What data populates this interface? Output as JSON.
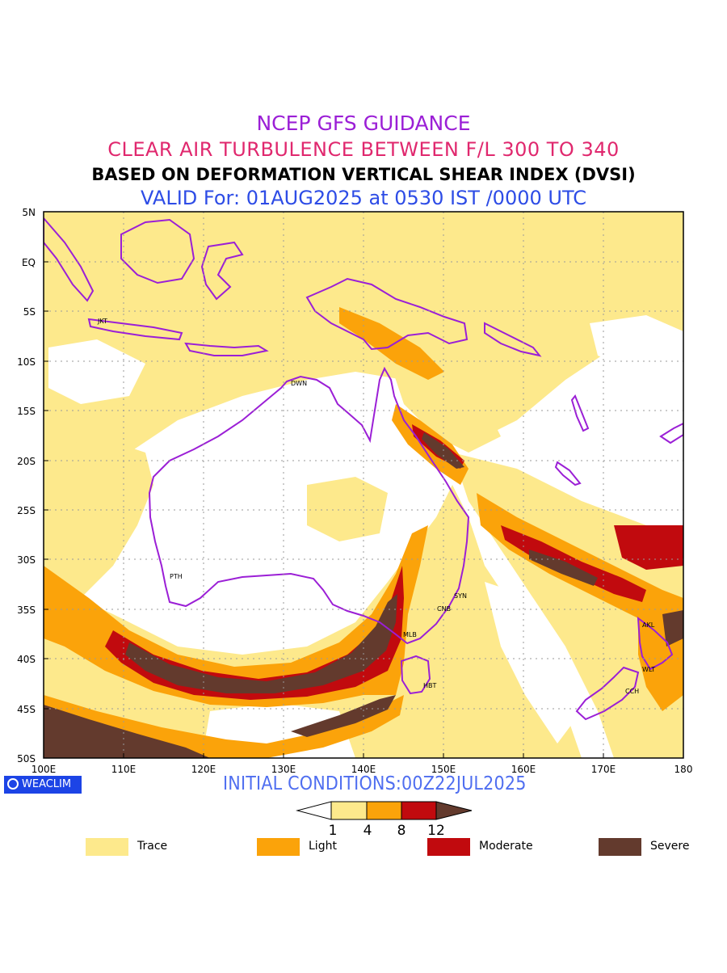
{
  "titles": {
    "line1": "NCEP GFS GUIDANCE",
    "line2": "CLEAR AIR TURBULENCE BETWEEN F/L 300 TO 340",
    "line3": "BASED ON DEFORMATION VERTICAL SHEAR INDEX (DVSI)",
    "line4": "VALID For: 01AUG2025 at 0530 IST /0000 UTC"
  },
  "map": {
    "lat_labels": [
      "5N",
      "EQ",
      "5S",
      "10S",
      "15S",
      "20S",
      "25S",
      "30S",
      "35S",
      "40S",
      "45S",
      "50S"
    ],
    "lon_labels": [
      "100E",
      "110E",
      "120E",
      "130E",
      "140E",
      "150E",
      "160E",
      "170E",
      "180"
    ],
    "cities": [
      "JKT",
      "DWN",
      "PTH",
      "SYN",
      "CNB",
      "MLB",
      "HBT",
      "AKL",
      "WLT",
      "CCH"
    ],
    "colors": {
      "trace": "#fde98c",
      "light": "#fba30a",
      "moderate": "#c10a0e",
      "severe": "#633a2d",
      "coast": "#9b1fd6"
    }
  },
  "branding": {
    "label": "WEACLIM"
  },
  "initial_conditions": "INITIAL CONDITIONS:00Z22JUL2025",
  "colorbar": {
    "ticks": [
      "1",
      "4",
      "8",
      "12"
    ]
  },
  "legend": {
    "trace": "Trace",
    "light": "Light",
    "moderate": "Moderate",
    "severe": "Severe"
  }
}
